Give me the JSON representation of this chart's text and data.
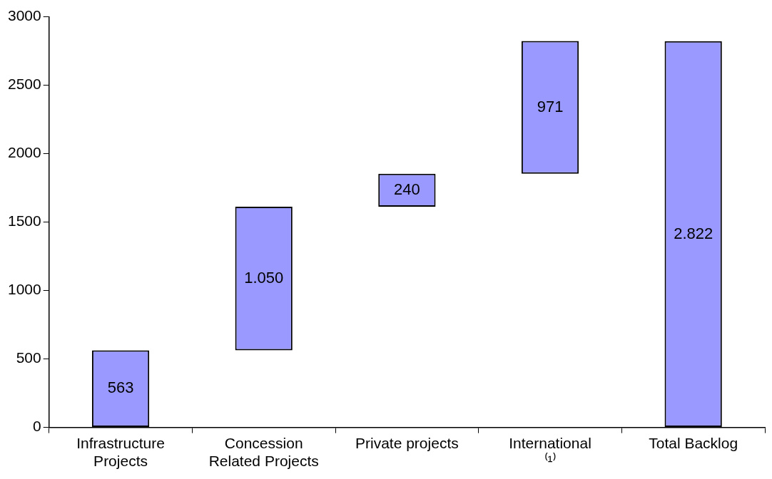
{
  "chart_data": {
    "type": "bar",
    "categories": [
      "Infrastructure Projects",
      "Concession Related Projects",
      "Private projects",
      "International ⁽¹⁾",
      "Total Backlog"
    ],
    "values": [
      563,
      1050,
      240,
      971,
      2822
    ],
    "base": [
      0,
      563,
      1613,
      1853,
      0
    ],
    "value_labels": [
      "563",
      "1.050",
      "240",
      "971",
      "2.822"
    ],
    "color": "#9999ff",
    "ylim": [
      0,
      3000
    ],
    "yticks": [
      0,
      500,
      1000,
      1500,
      2000,
      2500,
      3000
    ],
    "grid": false,
    "legend": false
  }
}
